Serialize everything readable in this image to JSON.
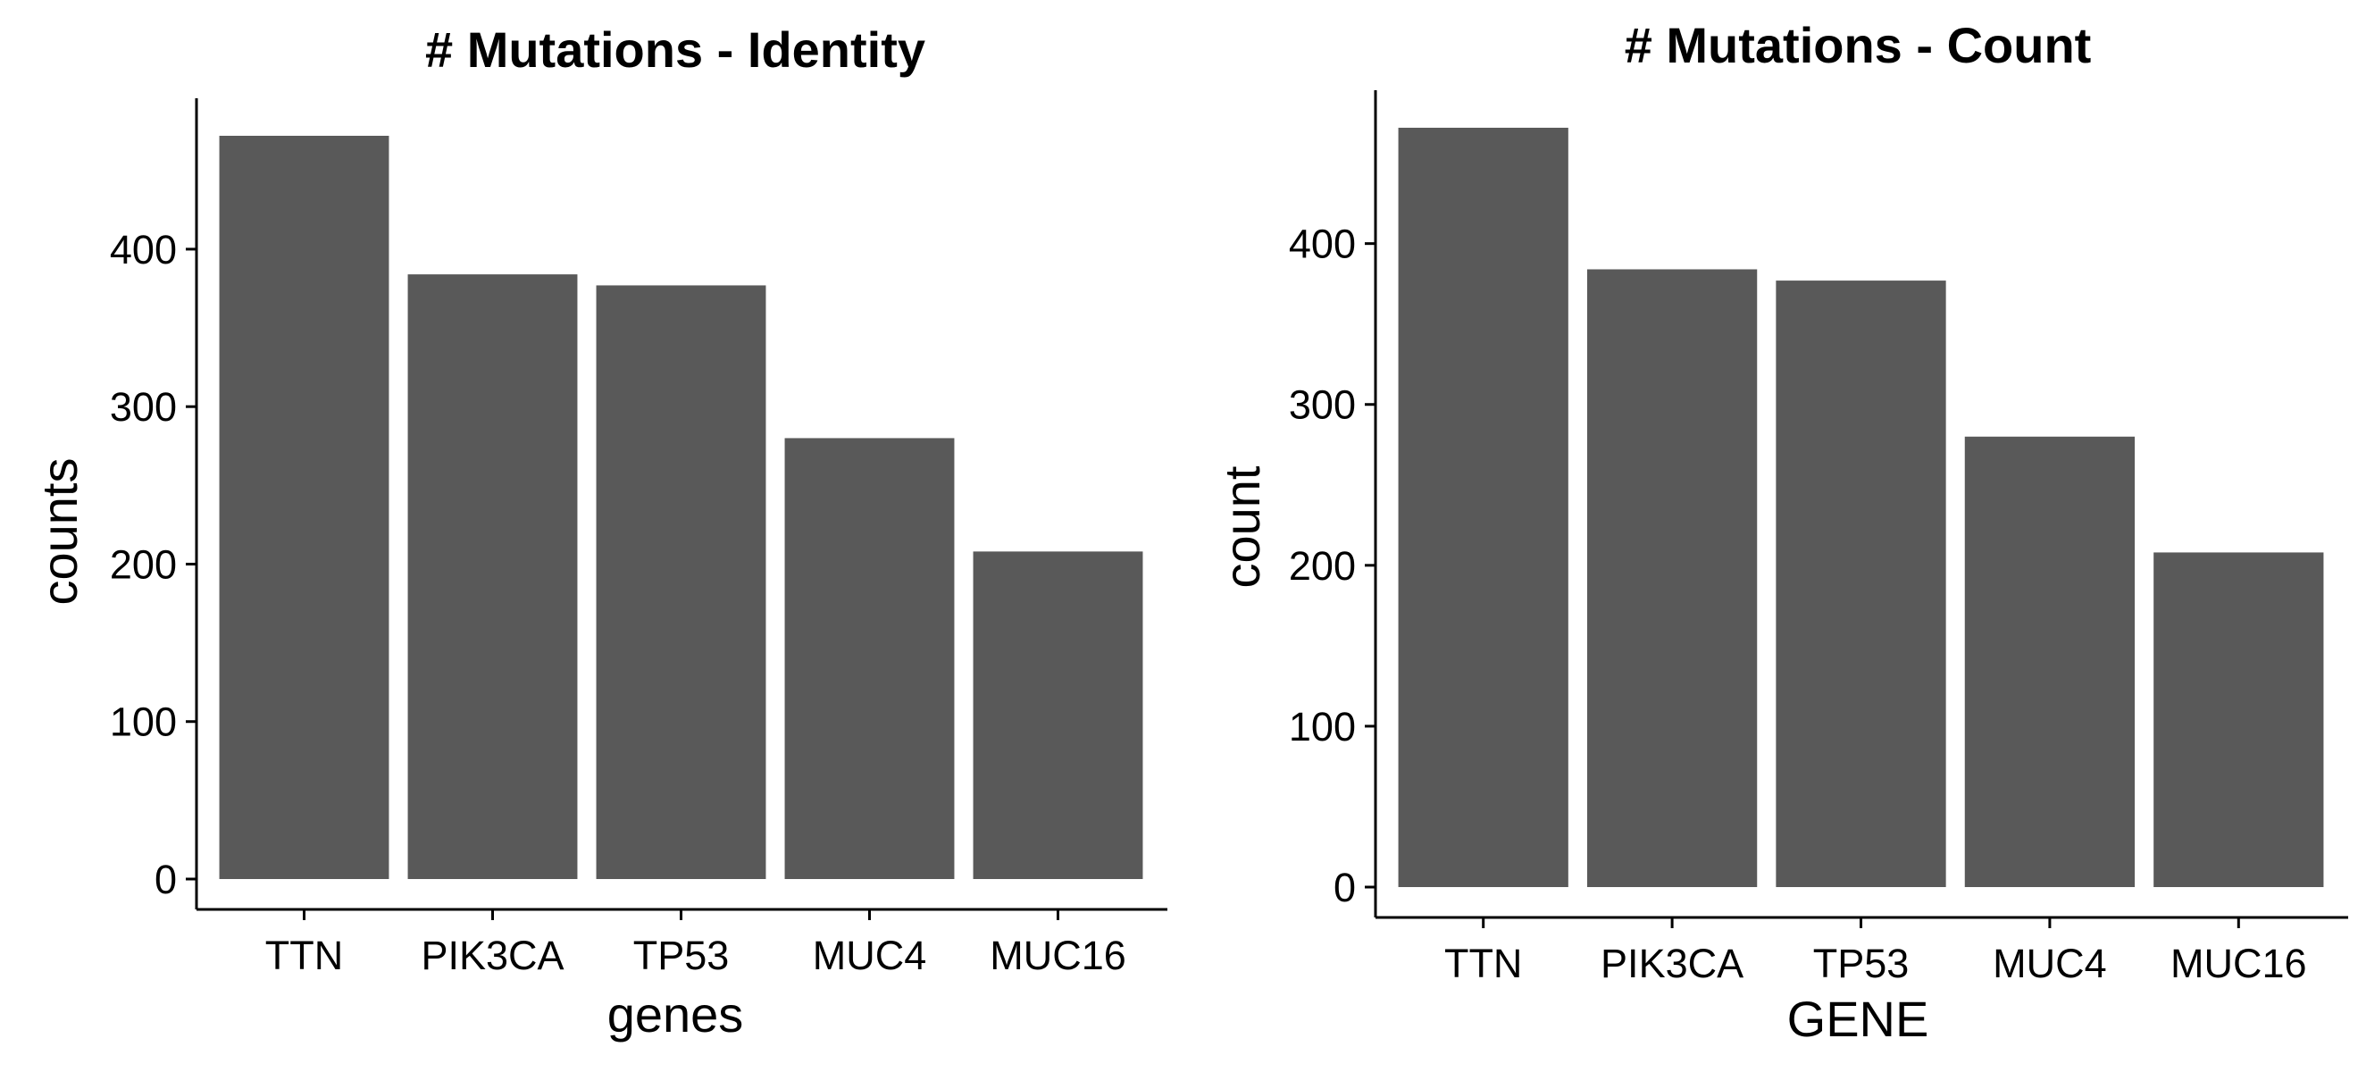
{
  "colors": {
    "bar": "#595959",
    "axis": "#000000",
    "background": "#ffffff"
  },
  "chart_data": [
    {
      "type": "bar",
      "title": "# Mutations - Identity",
      "xlabel": "genes",
      "ylabel": "counts",
      "categories": [
        "TTN",
        "PIK3CA",
        "TP53",
        "MUC4",
        "MUC16"
      ],
      "values": [
        472,
        384,
        377,
        280,
        208
      ],
      "yticks": [
        0,
        100,
        200,
        300,
        400
      ],
      "ylim": [
        0,
        472
      ],
      "grid": false,
      "legend": "none"
    },
    {
      "type": "bar",
      "title": "# Mutations - Count",
      "xlabel": "GENE",
      "ylabel": "count",
      "categories": [
        "TTN",
        "PIK3CA",
        "TP53",
        "MUC4",
        "MUC16"
      ],
      "values": [
        472,
        384,
        377,
        280,
        208
      ],
      "yticks": [
        0,
        100,
        200,
        300,
        400
      ],
      "ylim": [
        0,
        472
      ],
      "grid": false,
      "legend": "none"
    }
  ]
}
